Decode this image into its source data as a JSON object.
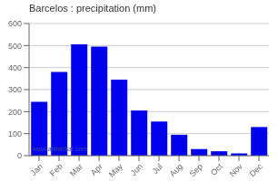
{
  "chart_data": {
    "type": "bar",
    "title": "Barcelos : precipitation (mm)",
    "categories": [
      "Jan",
      "Feb",
      "Mar",
      "Apr",
      "May",
      "Jun",
      "Jul",
      "Aug",
      "Sep",
      "Oct",
      "Nov",
      "Dec"
    ],
    "values": [
      245,
      380,
      505,
      495,
      345,
      205,
      155,
      95,
      30,
      20,
      10,
      130
    ],
    "color": "#0000EE",
    "ylim": [
      0,
      600
    ],
    "yticks": [
      0,
      100,
      200,
      300,
      400,
      500,
      600
    ],
    "grid": true,
    "annotations": [
      "www.allmetsat.com"
    ]
  }
}
